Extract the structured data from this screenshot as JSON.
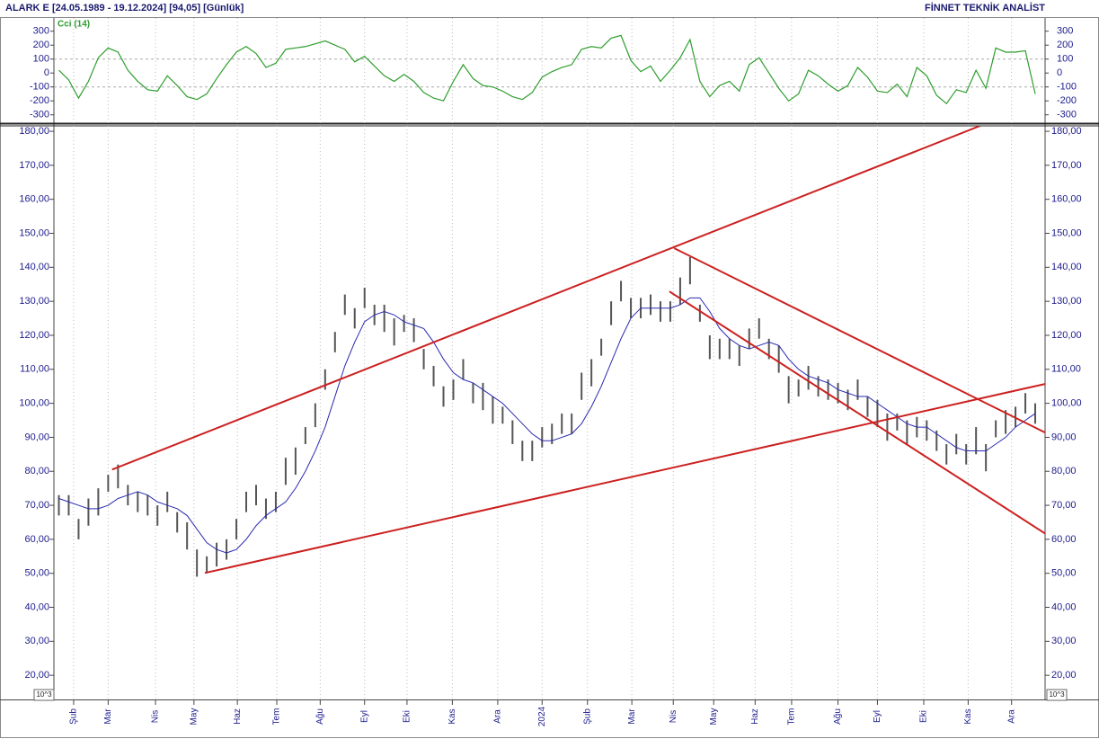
{
  "header": {
    "title": "ALARK E  [24.05.1989 - 19.12.2024]  [94,05]  [Günlük]",
    "brand": "FİNNET TEKNİK ANALİST"
  },
  "chart_data": [
    {
      "type": "line",
      "title": "Cci (14)",
      "color": "#2e9e2e",
      "values": [
        20,
        -50,
        -180,
        -60,
        110,
        180,
        150,
        20,
        -60,
        -120,
        -130,
        -20,
        -90,
        -170,
        -190,
        -150,
        -40,
        60,
        150,
        190,
        140,
        40,
        70,
        170,
        180,
        190,
        210,
        230,
        200,
        170,
        80,
        120,
        50,
        -20,
        -60,
        -10,
        -60,
        -140,
        -180,
        -200,
        -60,
        60,
        -40,
        -90,
        -100,
        -130,
        -170,
        -190,
        -140,
        -30,
        10,
        40,
        60,
        170,
        190,
        180,
        250,
        270,
        90,
        10,
        50,
        -60,
        20,
        110,
        240,
        -60,
        -170,
        -90,
        -60,
        -130,
        60,
        110,
        0,
        -110,
        -200,
        -150,
        20,
        -20,
        -80,
        -130,
        -90,
        40,
        -30,
        -130,
        -140,
        -80,
        -170,
        40,
        -20,
        -160,
        -220,
        -120,
        -140,
        20,
        -110,
        180,
        150,
        150,
        160,
        -150
      ],
      "ylim": [
        -360,
        395
      ],
      "yticks": [
        -300,
        -200,
        -100,
        0,
        100,
        200,
        300
      ],
      "reference_lines": [
        -100,
        100
      ]
    },
    {
      "type": "ohlc",
      "color": "#555555",
      "unit_label": "10^3",
      "high": [
        73,
        73,
        66,
        72,
        75,
        79,
        82,
        76,
        74,
        73,
        70,
        74,
        68,
        65,
        57,
        55,
        59,
        60,
        66,
        74,
        76,
        72,
        74,
        84,
        87,
        93,
        100,
        110,
        121,
        132,
        128,
        134,
        129,
        129,
        125,
        126,
        125,
        116,
        111,
        105,
        107,
        113,
        106,
        106,
        102,
        99,
        95,
        89,
        89,
        93,
        94,
        97,
        97,
        109,
        113,
        119,
        130,
        136,
        131,
        131,
        132,
        130,
        130,
        137,
        143,
        129,
        120,
        119,
        119,
        117,
        122,
        125,
        119,
        117,
        108,
        107,
        111,
        108,
        107,
        106,
        104,
        107,
        102,
        101,
        97,
        97,
        95,
        96,
        95,
        92,
        88,
        91,
        88,
        93,
        88,
        95,
        98,
        99,
        103,
        100
      ],
      "low": [
        67,
        67,
        60,
        64,
        67,
        74,
        75,
        70,
        68,
        67,
        64,
        68,
        62,
        57,
        49,
        50,
        52,
        54,
        60,
        68,
        70,
        66,
        68,
        76,
        79,
        88,
        93,
        104,
        115,
        126,
        122,
        128,
        123,
        121,
        117,
        121,
        118,
        110,
        105,
        99,
        101,
        107,
        100,
        98,
        94,
        94,
        88,
        83,
        83,
        87,
        88,
        91,
        91,
        101,
        105,
        114,
        123,
        130,
        125,
        125,
        126,
        124,
        124,
        129,
        135,
        124,
        113,
        113,
        113,
        111,
        116,
        119,
        113,
        109,
        100,
        102,
        104,
        102,
        101,
        100,
        98,
        101,
        96,
        93,
        89,
        92,
        88,
        90,
        89,
        86,
        82,
        85,
        82,
        85,
        80,
        90,
        91,
        93,
        97,
        94
      ],
      "moving_average": {
        "color": "#2a2ab0",
        "values": [
          72,
          71,
          70,
          69,
          69,
          70,
          72,
          73,
          74,
          73,
          71,
          70,
          69,
          67,
          63,
          59,
          57,
          56,
          57,
          60,
          64,
          67,
          69,
          71,
          75,
          80,
          86,
          93,
          102,
          111,
          118,
          124,
          126,
          127,
          126,
          124,
          123,
          122,
          118,
          113,
          109,
          107,
          106,
          104,
          102,
          100,
          97,
          94,
          91,
          89,
          89,
          90,
          91,
          94,
          99,
          105,
          112,
          119,
          125,
          128,
          128,
          128,
          128,
          129,
          131,
          131,
          127,
          122,
          119,
          117,
          116,
          117,
          118,
          117,
          113,
          110,
          108,
          107,
          106,
          104,
          103,
          102,
          102,
          100,
          98,
          96,
          94,
          93,
          93,
          91,
          89,
          87,
          86,
          86,
          86,
          88,
          90,
          93,
          95,
          97
        ]
      },
      "trendlines": {
        "color": "#cc2020",
        "lines": [
          {
            "x": [
              5.4,
              93.4
            ],
            "y": [
              80.5,
              181.6
            ]
          },
          {
            "x": [
              14.8,
              100
            ],
            "y": [
              50.1,
              105.7
            ]
          },
          {
            "x": [
              62.4,
              100
            ],
            "y": [
              145.6,
              91.4
            ]
          },
          {
            "x": [
              61.9,
              100
            ],
            "y": [
              132.9,
              61.7
            ]
          }
        ]
      },
      "xlim": [
        -0.5,
        100
      ],
      "xticks": [
        {
          "value": 1.5,
          "label": "Şub"
        },
        {
          "value": 5,
          "label": "Mar"
        },
        {
          "value": 9.8,
          "label": "Nis"
        },
        {
          "value": 13.7,
          "label": "May"
        },
        {
          "value": 18.1,
          "label": "Haz"
        },
        {
          "value": 22.1,
          "label": "Tem"
        },
        {
          "value": 26.5,
          "label": "Ağu"
        },
        {
          "value": 31,
          "label": "Eyl"
        },
        {
          "value": 35.3,
          "label": "Eki"
        },
        {
          "value": 39.9,
          "label": "Kas"
        },
        {
          "value": 44.5,
          "label": "Ara"
        },
        {
          "value": 49,
          "label": "2024"
        },
        {
          "value": 53.6,
          "label": "Şub"
        },
        {
          "value": 58.1,
          "label": "Mar"
        },
        {
          "value": 62.3,
          "label": "Nis"
        },
        {
          "value": 66.4,
          "label": "May"
        },
        {
          "value": 70.6,
          "label": "Haz"
        },
        {
          "value": 74.3,
          "label": "Tem"
        },
        {
          "value": 79,
          "label": "Ağu"
        },
        {
          "value": 83,
          "label": "Eyl"
        },
        {
          "value": 87.7,
          "label": "Eki"
        },
        {
          "value": 92.2,
          "label": "Kas"
        },
        {
          "value": 96.6,
          "label": "Ara"
        }
      ],
      "ylim": [
        12.9,
        181.6
      ],
      "yticks": [
        {
          "value": 20,
          "label": "20,00"
        },
        {
          "value": 30,
          "label": "30,00"
        },
        {
          "value": 40,
          "label": "40,00"
        },
        {
          "value": 50,
          "label": "50,00"
        },
        {
          "value": 60,
          "label": "60,00"
        },
        {
          "value": 70,
          "label": "70,00"
        },
        {
          "value": 80,
          "label": "80,00"
        },
        {
          "value": 90,
          "label": "90,00"
        },
        {
          "value": 100,
          "label": "100,00"
        },
        {
          "value": 110,
          "label": "110,00"
        },
        {
          "value": 120,
          "label": "120,00"
        },
        {
          "value": 130,
          "label": "130,00"
        },
        {
          "value": 140,
          "label": "140,00"
        },
        {
          "value": 150,
          "label": "150,00"
        },
        {
          "value": 160,
          "label": "160,00"
        },
        {
          "value": 170,
          "label": "170,00"
        },
        {
          "value": 180,
          "label": "180,00"
        }
      ]
    }
  ]
}
